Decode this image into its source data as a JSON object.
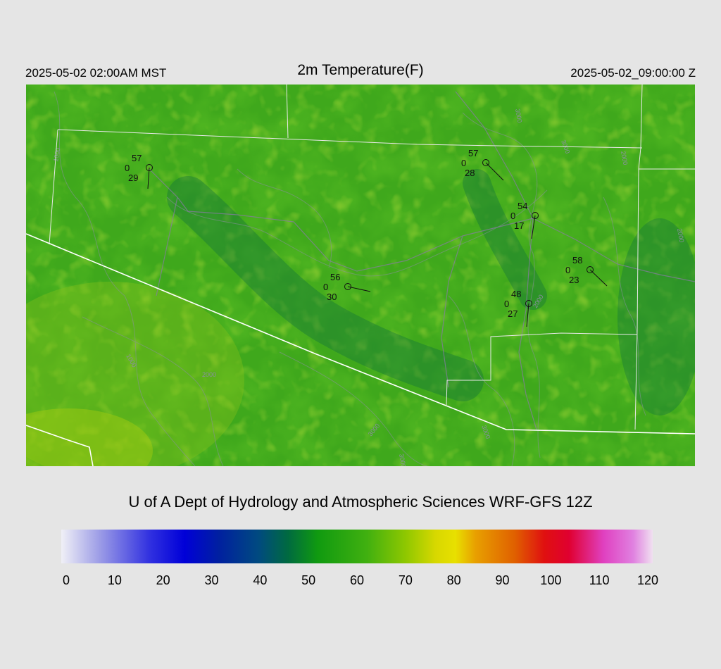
{
  "header": {
    "local_time": "2025-05-02 02:00AM MST",
    "title": "2m Temperature(F)",
    "utc_time": "2025-05-02_09:00:00 Z"
  },
  "credit": "U of A Dept of Hydrology and Atmospheric Sciences WRF-GFS 12Z",
  "colorbar": {
    "ticks": [
      "0",
      "10",
      "20",
      "30",
      "40",
      "50",
      "60",
      "70",
      "80",
      "90",
      "100",
      "110",
      "120"
    ],
    "stops": [
      {
        "value": 0,
        "color": "#f0f0f6"
      },
      {
        "value": 8,
        "color": "#9a9ae6"
      },
      {
        "value": 18,
        "color": "#3030e0"
      },
      {
        "value": 25,
        "color": "#0000d8"
      },
      {
        "value": 32,
        "color": "#0020a0"
      },
      {
        "value": 40,
        "color": "#004a80"
      },
      {
        "value": 46,
        "color": "#006a40"
      },
      {
        "value": 52,
        "color": "#109a10"
      },
      {
        "value": 62,
        "color": "#40b010"
      },
      {
        "value": 70,
        "color": "#90c800"
      },
      {
        "value": 76,
        "color": "#d8d800"
      },
      {
        "value": 80,
        "color": "#e8e000"
      },
      {
        "value": 84,
        "color": "#e8a000"
      },
      {
        "value": 92,
        "color": "#e06000"
      },
      {
        "value": 98,
        "color": "#e01010"
      },
      {
        "value": 103,
        "color": "#e00030"
      },
      {
        "value": 110,
        "color": "#e040c0"
      },
      {
        "value": 116,
        "color": "#e080e0"
      },
      {
        "value": 120,
        "color": "#f0e0f0"
      }
    ]
  },
  "contour_labels": [
    "1000",
    "2000",
    "3000",
    "3000",
    "3000",
    "3000",
    "2000",
    "1000",
    "3000",
    "2000",
    "2000"
  ],
  "stations": [
    {
      "temp": "57",
      "wind": "0",
      "dew": "29"
    },
    {
      "temp": "57",
      "wind": "0",
      "dew": "28"
    },
    {
      "temp": "54",
      "wind": "0",
      "dew": "17"
    },
    {
      "temp": "58",
      "wind": "0",
      "dew": "23"
    },
    {
      "temp": "56",
      "wind": "0",
      "dew": "30"
    },
    {
      "temp": "48",
      "wind": "0",
      "dew": "27"
    }
  ]
}
